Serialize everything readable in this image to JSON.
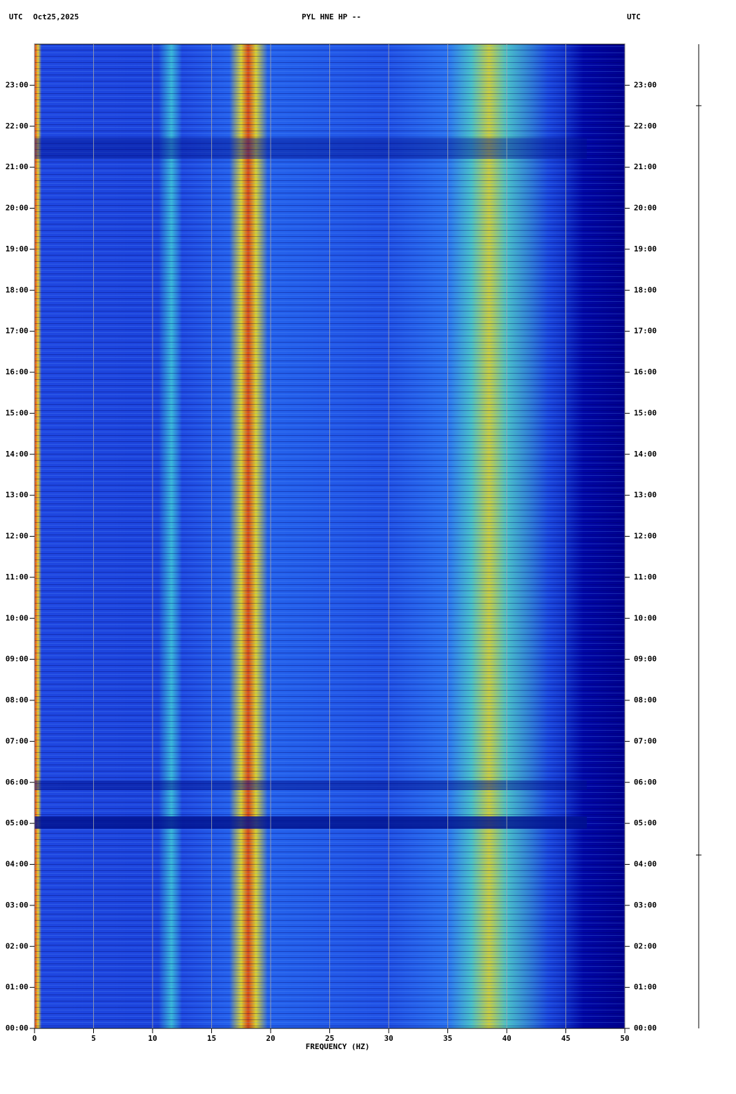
{
  "chart_data": {
    "type": "spectrogram",
    "title": "PYL HNE HP --",
    "date": "Oct25,2025",
    "timezone": "UTC",
    "xlabel": "FREQUENCY (HZ)",
    "xlim": [
      0,
      50
    ],
    "xticks": [
      0,
      5,
      10,
      15,
      20,
      25,
      30,
      35,
      40,
      45,
      50
    ],
    "ylim": [
      0,
      24
    ],
    "yticks": [
      {
        "value": 0,
        "label": "00:00"
      },
      {
        "value": 1,
        "label": "01:00"
      },
      {
        "value": 2,
        "label": "02:00"
      },
      {
        "value": 3,
        "label": "03:00"
      },
      {
        "value": 4,
        "label": "04:00"
      },
      {
        "value": 5,
        "label": "05:00"
      },
      {
        "value": 6,
        "label": "06:00"
      },
      {
        "value": 7,
        "label": "07:00"
      },
      {
        "value": 8,
        "label": "08:00"
      },
      {
        "value": 9,
        "label": "09:00"
      },
      {
        "value": 10,
        "label": "10:00"
      },
      {
        "value": 11,
        "label": "11:00"
      },
      {
        "value": 12,
        "label": "12:00"
      },
      {
        "value": 13,
        "label": "13:00"
      },
      {
        "value": 14,
        "label": "14:00"
      },
      {
        "value": 15,
        "label": "15:00"
      },
      {
        "value": 16,
        "label": "16:00"
      },
      {
        "value": 17,
        "label": "17:00"
      },
      {
        "value": 18,
        "label": "18:00"
      },
      {
        "value": 19,
        "label": "19:00"
      },
      {
        "value": 20,
        "label": "20:00"
      },
      {
        "value": 21,
        "label": "21:00"
      },
      {
        "value": 22,
        "label": "22:00"
      },
      {
        "value": 23,
        "label": "23:00"
      }
    ],
    "grid": true
  }
}
